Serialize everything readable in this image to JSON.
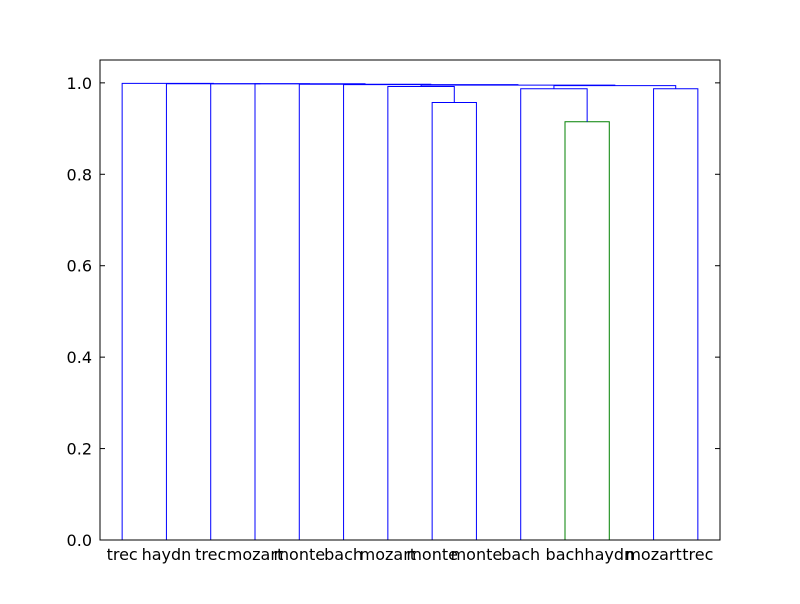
{
  "chart_data": {
    "type": "dendrogram",
    "title": "",
    "xlabel": "",
    "ylabel": "",
    "ylim": [
      0.0,
      1.05
    ],
    "yticks": [
      "0.0",
      "0.2",
      "0.4",
      "0.6",
      "0.8",
      "1.0"
    ],
    "leaves": [
      "trec",
      "haydn",
      "trec",
      "mozart",
      "monte",
      "bach",
      "mozart",
      "monte",
      "monte",
      "bach",
      "bach",
      "haydn",
      "mozart",
      "trec"
    ],
    "links": [
      {
        "left": 7,
        "right": 8,
        "height": 0.957,
        "color": "#0000ff"
      },
      {
        "left": 10,
        "right": 11,
        "height": 0.915,
        "color": "#008000"
      },
      {
        "left": 12,
        "right": 13,
        "height": 0.987,
        "color": "#0000ff"
      },
      {
        "left": 9,
        "right": 15,
        "height": 0.987,
        "color": "#0000ff"
      },
      {
        "left": 6,
        "right": 14,
        "height": 0.992,
        "color": "#0000ff"
      },
      {
        "left": 17,
        "right": 16,
        "height": 0.994,
        "color": "#0000ff"
      },
      {
        "left": 19,
        "right": 18,
        "height": 0.995,
        "color": "#0000ff"
      },
      {
        "left": 5,
        "right": 20,
        "height": 0.996,
        "color": "#0000ff"
      },
      {
        "left": 4,
        "right": 21,
        "height": 0.997,
        "color": "#0000ff"
      },
      {
        "left": 3,
        "right": 22,
        "height": 0.998,
        "color": "#0000ff"
      },
      {
        "left": 2,
        "right": 23,
        "height": 0.998,
        "color": "#0000ff"
      },
      {
        "left": 1,
        "right": 24,
        "height": 0.998,
        "color": "#0000ff"
      },
      {
        "left": 0,
        "right": 25,
        "height": 0.999,
        "color": "#0000ff"
      }
    ]
  }
}
